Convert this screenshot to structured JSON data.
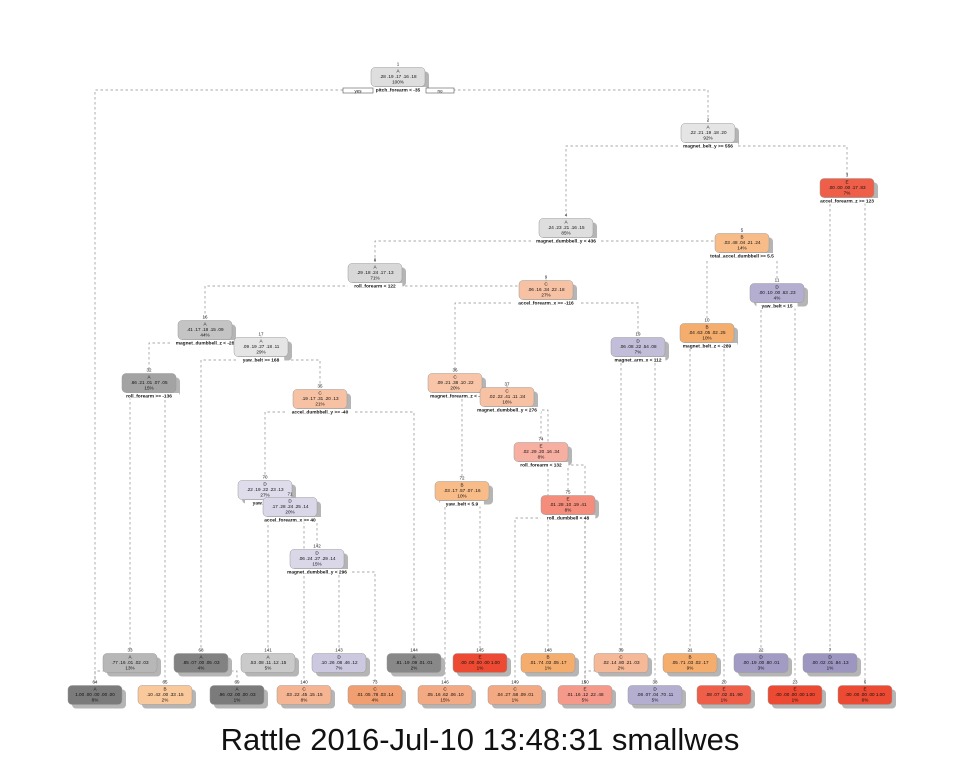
{
  "caption": "Rattle 2016-Jul-10 13:48:31 smallwes",
  "branch_labels": {
    "yes": "yes",
    "no": "no"
  },
  "colors": {
    "A": [
      "#f2f2f2",
      "#6e6e6e"
    ],
    "B": [
      "#fde6cf",
      "#f29a4d"
    ],
    "C": [
      "#fbd8c4",
      "#ee8a55"
    ],
    "D": [
      "#e8e6f1",
      "#8a82b5"
    ],
    "E": [
      "#fbd0c6",
      "#ec4a32"
    ],
    "edge": "#8c8c8c",
    "shadow": "#b5b5b5"
  },
  "nodes": [
    {
      "id": "1",
      "cls": "A",
      "probs": ".28 .19 .17 .16 .18",
      "pct": "100%",
      "rule": "pitch_forearm < -35",
      "shade": 0.15
    },
    {
      "id": "2",
      "cls": "A",
      "probs": ".22 .21 .19 .18 .20",
      "pct": "92%",
      "rule": "magnet_belt_y >= 556",
      "shade": 0.1
    },
    {
      "id": "3",
      "cls": "E",
      "probs": ".00 .00 .00 .17 .83",
      "pct": "7%",
      "rule": "accel_forearm_z >= 123",
      "shade": 0.85
    },
    {
      "id": "4",
      "cls": "A",
      "probs": ".24 .23 .21 .16 .15",
      "pct": "85%",
      "rule": "magnet_dumbbell_y < 436",
      "shade": 0.15
    },
    {
      "id": "5",
      "cls": "B",
      "probs": ".03 .48 .04 .21 .24",
      "pct": "14%",
      "rule": "total_accel_dumbbell >= 5.5",
      "shade": 0.55
    },
    {
      "id": "8",
      "cls": "A",
      "probs": ".29 .18 .24 .17 .13",
      "pct": "71%",
      "rule": "roll_forearm < 122",
      "shade": 0.2
    },
    {
      "id": "9",
      "cls": "C",
      "probs": ".06 .16 .34 .22 .18",
      "pct": "27%",
      "rule": "accel_forearm_x >= -116",
      "shade": 0.3
    },
    {
      "id": "10",
      "cls": "B",
      "probs": ".04 .63 .05 .02 .25",
      "pct": "10%",
      "rule": "magnet_belt_z < -289",
      "shade": 0.75
    },
    {
      "id": "11",
      "cls": "D",
      "probs": ".00 .10 .00 .63 .23",
      "pct": "4%",
      "rule": "yaw_belt < 15",
      "shade": 0.55
    },
    {
      "id": "16",
      "cls": "A",
      "probs": ".41 .17 .18 .15 .09",
      "pct": "44%",
      "rule": "magnet_dumbbell_z < -28",
      "shade": 0.35
    },
    {
      "id": "17",
      "cls": "A",
      "probs": ".09 .19 .27 .18 .11",
      "pct": "29%",
      "rule": "yaw_belt >= 168",
      "shade": 0.1
    },
    {
      "id": "19",
      "cls": "D",
      "probs": ".06 .08 .22 .54 .08",
      "pct": "7%",
      "rule": "magnet_arm_x < 112",
      "shade": 0.4
    },
    {
      "id": "32",
      "cls": "A",
      "probs": ".66 .21 .01 .07 .05",
      "pct": "15%",
      "rule": "roll_forearm >= -136",
      "shade": 0.6
    },
    {
      "id": "35",
      "cls": "C",
      "probs": ".19 .17 .31 .20 .13",
      "pct": "21%",
      "rule": "accel_dumbbell_y >= -40",
      "shade": 0.3
    },
    {
      "id": "36",
      "cls": "C",
      "probs": ".09 .21 .38 .10 .22",
      "pct": "20%",
      "rule": "magnet_forearm_z < -",
      "shade": 0.25
    },
    {
      "id": "37",
      "cls": "C",
      "probs": ".02 .22 .41 .11 .24",
      "pct": "16%",
      "rule": "magnet_dumbbell_y < 276",
      "shade": 0.3
    },
    {
      "id": "70",
      "cls": "D",
      "probs": ".22 .19 .22 .23 .13",
      "pct": "27%",
      "rule": "yaw_arm <",
      "shade": 0.1
    },
    {
      "id": "71",
      "cls": "D",
      "probs": ".17 .28 .24 .25 .14",
      "pct": "20%",
      "rule": "accel_forearm_x >= 40",
      "shade": 0.15
    },
    {
      "id": "74",
      "cls": "E",
      "probs": ".02 .29 .20 .16 .34",
      "pct": "8%",
      "rule": "roll_forearm < 132",
      "shade": 0.25
    },
    {
      "id": "72",
      "cls": "B",
      "probs": ".03 .17 .57 .07 .16",
      "pct": "10%",
      "rule": "yaw_belt < 5.9",
      "shade": 0.55
    },
    {
      "id": "75",
      "cls": "E",
      "probs": ".01 .28 .10 .19 .41",
      "pct": "8%",
      "rule": "roll_dumbbell < 48",
      "shade": 0.5
    },
    {
      "id": "142",
      "cls": "D",
      "probs": ".06 .24 .27 .29 .14",
      "pct": "15%",
      "rule": "magnet_dumbbell_y < 296",
      "shade": 0.15
    },
    {
      "id": "33",
      "cls": "A",
      "probs": ".77 .16 .01 .02 .03",
      "pct": "13%",
      "rule": "",
      "shade": 0.45
    },
    {
      "id": "68",
      "cls": "A",
      "probs": ".85 .07 .00 .05 .03",
      "pct": "4%",
      "rule": "",
      "shade": 0.85
    },
    {
      "id": "141",
      "cls": "A",
      "probs": ".53 .08 .11 .12 .15",
      "pct": "5%",
      "rule": "",
      "shade": 0.3
    },
    {
      "id": "143",
      "cls": "D",
      "probs": ".10 .26 .08 .46 .12",
      "pct": "7%",
      "rule": "",
      "shade": 0.3
    },
    {
      "id": "144",
      "cls": "A",
      "probs": ".81 .19 .09 .01 .01",
      "pct": "2%",
      "rule": "",
      "shade": 0.8
    },
    {
      "id": "145",
      "cls": "E",
      "probs": ".00 .00 .00 .00 1.00",
      "pct": "1%",
      "rule": "",
      "shade": 1
    },
    {
      "id": "148",
      "cls": "B",
      "probs": ".01 .74 .03 .05 .17",
      "pct": "1%",
      "rule": "",
      "shade": 0.75
    },
    {
      "id": "39",
      "cls": "C",
      "probs": ".02 .14 .80 .21 .03",
      "pct": "2%",
      "rule": "",
      "shade": 0.4
    },
    {
      "id": "21",
      "cls": "B",
      "probs": ".05 .71 .03 .02 .17",
      "pct": "9%",
      "rule": "",
      "shade": 0.75
    },
    {
      "id": "22",
      "cls": "D",
      "probs": ".00 .19 .00 .80 .01",
      "pct": "3%",
      "rule": "",
      "shade": 0.75
    },
    {
      "id": "7",
      "cls": "D",
      "probs": ".00 .02 .01 .84 .13",
      "pct": "1%",
      "rule": "",
      "shade": 0.8
    },
    {
      "id": "64",
      "cls": "A",
      "probs": "1.00 .00 .00 .00 .00",
      "pct": "8%",
      "rule": "",
      "shade": 0.9
    },
    {
      "id": "65",
      "cls": "B",
      "probs": ".10 .42 .00 .33 .15",
      "pct": "2%",
      "rule": "",
      "shade": 0.4
    },
    {
      "id": "69",
      "cls": "A",
      "probs": ".96 .02 .00 .00 .03",
      "pct": "1%",
      "rule": "",
      "shade": 0.9
    },
    {
      "id": "140",
      "cls": "C",
      "probs": ".03 .22 .45 .15 .15",
      "pct": "8%",
      "rule": "",
      "shade": 0.45
    },
    {
      "id": "73",
      "cls": "C",
      "probs": ".01 .05 .78 .03 .14",
      "pct": "4%",
      "rule": "",
      "shade": 0.75
    },
    {
      "id": "146",
      "cls": "C",
      "probs": ".05 .16 .62 .06 .10",
      "pct": "15%",
      "rule": "",
      "shade": 0.6
    },
    {
      "id": "149",
      "cls": "C",
      "probs": ".04 .27 .58 .09 .01",
      "pct": "1%",
      "rule": "",
      "shade": 0.6
    },
    {
      "id": "150",
      "cls": "E",
      "probs": ".01 .16 .12 .22 .48",
      "pct": "5%",
      "rule": "",
      "shade": 0.4
    },
    {
      "id": "38",
      "cls": "D",
      "probs": ".08 .07 .04 .70 .11",
      "pct": "5%",
      "rule": "",
      "shade": 0.55
    },
    {
      "id": "20",
      "cls": "E",
      "probs": ".08 .07 .02 .01 .90",
      "pct": "1%",
      "rule": "",
      "shade": 0.85
    },
    {
      "id": "23",
      "cls": "E",
      "probs": ".00 .00 .00 .00 1.00",
      "pct": "1%",
      "rule": "",
      "shade": 1
    },
    {
      "id": "6",
      "cls": "E",
      "probs": ".00 .00 .00 .00 1.00",
      "pct": "6%",
      "rule": "",
      "shade": 1
    }
  ],
  "edges": [
    [
      "1",
      "2"
    ],
    [
      "1",
      "64"
    ],
    [
      "2",
      "4"
    ],
    [
      "2",
      "3"
    ],
    [
      "3",
      "7"
    ],
    [
      "3",
      "6"
    ],
    [
      "4",
      "8"
    ],
    [
      "4",
      "5"
    ],
    [
      "5",
      "10"
    ],
    [
      "5",
      "11"
    ],
    [
      "8",
      "16"
    ],
    [
      "8",
      "9"
    ],
    [
      "9",
      "36"
    ],
    [
      "9",
      "19"
    ],
    [
      "10",
      "21"
    ],
    [
      "10",
      "20"
    ],
    [
      "11",
      "22"
    ],
    [
      "11",
      "23"
    ],
    [
      "16",
      "32"
    ],
    [
      "16",
      "17"
    ],
    [
      "17",
      "68"
    ],
    [
      "17",
      "35"
    ],
    [
      "19",
      "39"
    ],
    [
      "19",
      "38"
    ],
    [
      "32",
      "33"
    ],
    [
      "32",
      "65"
    ],
    [
      "33",
      "64"
    ],
    [
      "35",
      "70"
    ],
    [
      "35",
      "144"
    ],
    [
      "36",
      "72"
    ],
    [
      "36",
      "37"
    ],
    [
      "37",
      "74"
    ],
    [
      "37",
      "148"
    ],
    [
      "70",
      "141"
    ],
    [
      "70",
      "71"
    ],
    [
      "71",
      "140"
    ],
    [
      "71",
      "142"
    ],
    [
      "72",
      "146"
    ],
    [
      "72",
      "145"
    ],
    [
      "74",
      "75"
    ],
    [
      "74",
      "150"
    ],
    [
      "75",
      "149"
    ],
    [
      "75",
      "150"
    ],
    [
      "142",
      "143"
    ],
    [
      "142",
      "73"
    ],
    [
      "68",
      "69"
    ],
    [
      "39",
      "150"
    ]
  ]
}
